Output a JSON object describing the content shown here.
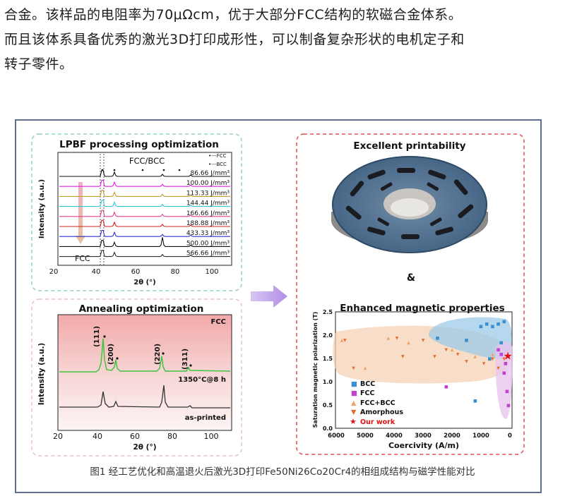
{
  "paragraph": {
    "lines": [
      "合金。该样品的电阻率为70μΩcm，优于大部分FCC结构的软磁合金体系。",
      "而且该体系具备优秀的激光3D打印成形性，可以制备复杂形状的电机定子和",
      "转子零件。"
    ]
  },
  "figure": {
    "caption": "图1 经工艺优化和高温退火后激光3D打印Fe50Ni26Co20Cr4的相组成结构与磁学性能对比",
    "lpbf_panel": {
      "title": "LPBF processing optimization",
      "phase_label": "FCC/BCC",
      "legend_fcc": "•---FCC",
      "legend_bcc": "•---BCC",
      "fcc_label": "FCC",
      "ylabel": "Intensity (a.u.)",
      "xlabel": "2θ (°)",
      "xticks": [
        "20",
        "40",
        "60",
        "80",
        "100"
      ],
      "energy_densities": [
        "86.66 J/mm³",
        "100.00 J/mm³",
        "113.33 J/mm³",
        "144.44 J/mm³",
        "166.66 J/mm³",
        "188.88 J/mm³",
        "433.33 J/mm³",
        "500.00 J/mm³",
        "566.66 J/mm³"
      ],
      "curve_colors": [
        "#111111",
        "#e020e0",
        "#c0a030",
        "#30c8d8",
        "#e04090",
        "#d02020",
        "#3030d0",
        "#101010",
        "#303030"
      ]
    },
    "annealing_panel": {
      "title": "Annealing optimization",
      "phase_label": "FCC",
      "peaks": [
        "(111)",
        "(200)",
        "(220)",
        "(311)"
      ],
      "annealed_label": "1350°C@8 h",
      "asprinted_label": "as-printed",
      "ylabel": "Intensity (a.u.)",
      "xlabel": "2θ (°)",
      "xticks": [
        "20",
        "40",
        "60",
        "80",
        "100"
      ]
    },
    "printability": {
      "title": "Excellent printability",
      "ampersand": "&"
    },
    "magnetic": {
      "title": "Enhanced magnetic properties",
      "ylabel": "Saturation magnetic polarization (T)",
      "xlabel": "Coercivity (A/m)",
      "xticks": [
        "6000",
        "5000",
        "4000",
        "3000",
        "2000",
        "1000",
        "0"
      ],
      "yticks": [
        "0.0",
        "0.5",
        "1.0",
        "1.5",
        "2.0",
        "2.5"
      ],
      "legend": [
        "BCC",
        "FCC",
        "FCC+BCC",
        "Amorphous",
        "Our work"
      ],
      "colors": {
        "BCC": "#3a8fd0",
        "FCC": "#c040d0",
        "FCC+BCC": "#f0a060",
        "Amorphous": "#e07030",
        "Our work": "#e01010"
      }
    }
  },
  "chart_data": [
    {
      "type": "scatter",
      "title": "Enhanced magnetic properties",
      "xlabel": "Coercivity (A/m)",
      "ylabel": "Saturation magnetic polarization (T)",
      "xlim": [
        6000,
        0
      ],
      "ylim": [
        0,
        2.5
      ],
      "series": [
        {
          "name": "BCC",
          "points": [
            [
              1000,
              2.2
            ],
            [
              800,
              2.25
            ],
            [
              600,
              2.2
            ],
            [
              400,
              2.25
            ],
            [
              200,
              2.3
            ],
            [
              1500,
              1.9
            ],
            [
              2500,
              1.95
            ],
            [
              1200,
              0.6
            ],
            [
              300,
              1.85
            ],
            [
              700,
              1.5
            ]
          ]
        },
        {
          "name": "FCC",
          "points": [
            [
              2200,
              0.9
            ],
            [
              300,
              1.6
            ],
            [
              200,
              1.2
            ],
            [
              100,
              0.8
            ],
            [
              50,
              0.5
            ],
            [
              150,
              1.4
            ],
            [
              400,
              1.7
            ]
          ]
        },
        {
          "name": "FCC+BCC",
          "points": [
            [
              5800,
              1.9
            ],
            [
              4200,
              1.95
            ],
            [
              3500,
              1.85
            ],
            [
              2000,
              1.7
            ],
            [
              1200,
              1.55
            ],
            [
              600,
              1.6
            ],
            [
              5000,
              1.3
            ]
          ]
        },
        {
          "name": "Amorphous",
          "points": [
            [
              5700,
              1.9
            ],
            [
              5400,
              1.3
            ],
            [
              3900,
              1.95
            ],
            [
              3700,
              1.55
            ],
            [
              3000,
              1.9
            ],
            [
              2600,
              1.55
            ],
            [
              2200,
              1.7
            ],
            [
              1800,
              1.6
            ],
            [
              1500,
              1.45
            ],
            [
              900,
              1.4
            ],
            [
              600,
              1.5
            ],
            [
              400,
              1.3
            ],
            [
              200,
              1.5
            ]
          ]
        },
        {
          "name": "Our work",
          "points": [
            [
              70,
              1.55
            ]
          ]
        }
      ]
    }
  ]
}
